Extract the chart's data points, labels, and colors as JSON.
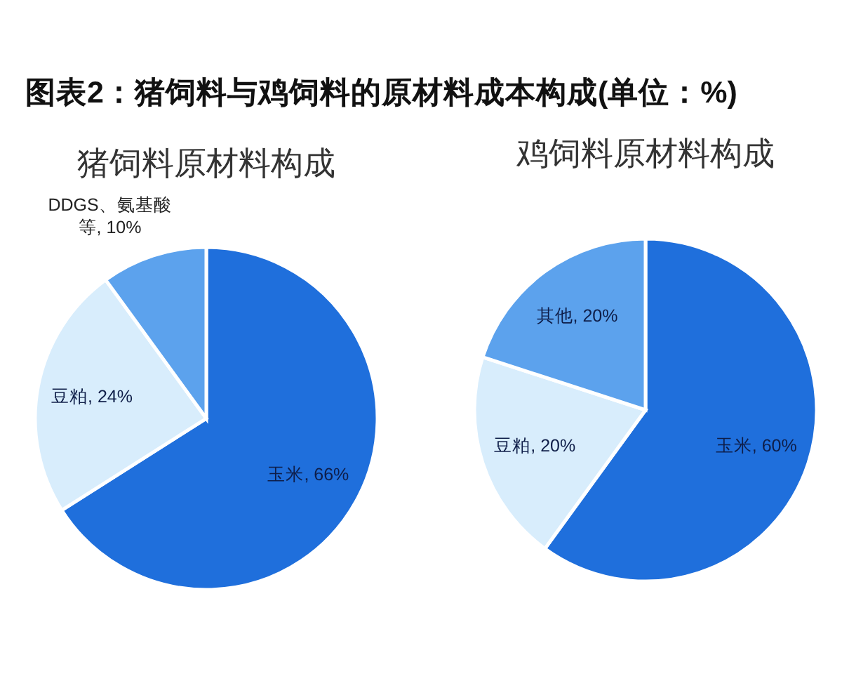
{
  "chart_data": [
    {
      "type": "pie",
      "title": "图表2：猪饲料与鸡饲料的原材料成本构成(单位：%)",
      "subtitle": "猪饲料原材料构成",
      "categories": [
        "玉米",
        "豆粕",
        "DDGS、氨基酸等"
      ],
      "values": [
        66,
        24,
        10
      ],
      "colors": [
        "#1f6fdc",
        "#d8edfc",
        "#5ca2ed"
      ],
      "value_labels": [
        "66%",
        "24%",
        "10%"
      ]
    },
    {
      "type": "pie",
      "title": "鸡饲料原材料构成",
      "categories": [
        "玉米",
        "豆粕",
        "其他"
      ],
      "values": [
        60,
        20,
        20
      ],
      "colors": [
        "#1f6fdc",
        "#d8edfc",
        "#5ca2ed"
      ],
      "value_labels": [
        "60%",
        "20%",
        "20%"
      ]
    }
  ]
}
